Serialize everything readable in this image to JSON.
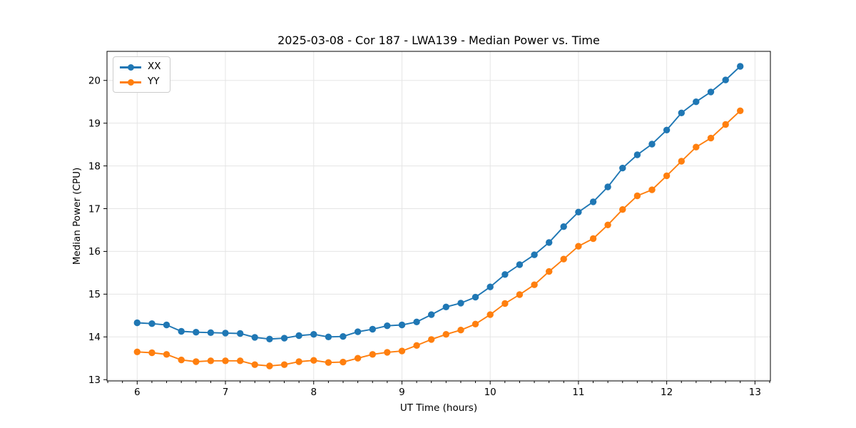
{
  "chart_data": {
    "type": "line",
    "title": "2025-03-08 - Cor 187 - LWA139 - Median Power vs. Time",
    "xlabel": "UT Time (hours)",
    "ylabel": "Median Power (CPU)",
    "xlim": [
      5.658,
      13.175
    ],
    "ylim": [
      12.97,
      20.68
    ],
    "xticks": [
      6,
      7,
      8,
      9,
      10,
      11,
      12,
      13
    ],
    "yticks": [
      13,
      14,
      15,
      16,
      17,
      18,
      19,
      20
    ],
    "x_minor_tick_step": 0.1667,
    "grid": true,
    "legend_position": "upper left",
    "x": [
      6.0,
      6.167,
      6.333,
      6.5,
      6.667,
      6.833,
      7.0,
      7.167,
      7.333,
      7.5,
      7.667,
      7.833,
      8.0,
      8.167,
      8.333,
      8.5,
      8.667,
      8.833,
      9.0,
      9.167,
      9.333,
      9.5,
      9.667,
      9.833,
      10.0,
      10.167,
      10.333,
      10.5,
      10.667,
      10.833,
      11.0,
      11.167,
      11.333,
      11.5,
      11.667,
      11.833,
      12.0,
      12.167,
      12.333,
      12.5,
      12.667,
      12.833
    ],
    "series": [
      {
        "name": "XX",
        "color": "#1f77b4",
        "marker": "circle",
        "values": [
          14.33,
          14.31,
          14.28,
          14.13,
          14.11,
          14.1,
          14.09,
          14.08,
          13.99,
          13.95,
          13.97,
          14.03,
          14.06,
          14.0,
          14.01,
          14.12,
          14.18,
          14.26,
          14.28,
          14.35,
          14.52,
          14.7,
          14.79,
          14.93,
          15.17,
          15.46,
          15.69,
          15.92,
          16.21,
          16.58,
          16.92,
          17.16,
          17.51,
          17.95,
          18.26,
          18.51,
          18.84,
          19.24,
          19.5,
          19.73,
          20.01,
          20.33
        ]
      },
      {
        "name": "YY",
        "color": "#ff7f0e",
        "marker": "circle",
        "values": [
          13.65,
          13.63,
          13.59,
          13.46,
          13.42,
          13.44,
          13.44,
          13.44,
          13.35,
          13.32,
          13.35,
          13.42,
          13.45,
          13.4,
          13.41,
          13.5,
          13.59,
          13.64,
          13.67,
          13.8,
          13.94,
          14.06,
          14.16,
          14.3,
          14.52,
          14.78,
          14.99,
          15.22,
          15.53,
          15.82,
          16.12,
          16.3,
          16.62,
          16.98,
          17.3,
          17.44,
          17.77,
          18.11,
          18.44,
          18.65,
          18.97,
          19.29
        ]
      }
    ]
  }
}
